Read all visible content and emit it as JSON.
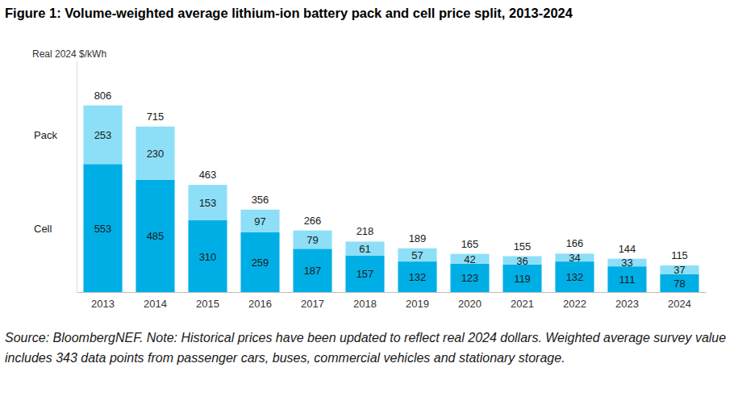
{
  "chart_data": {
    "type": "bar",
    "title": "Figure 1: Volume-weighted average lithium-ion battery pack and cell price split, 2013-2024",
    "y_label": "Real 2024 $/kWh",
    "categories": [
      "2013",
      "2014",
      "2015",
      "2016",
      "2017",
      "2018",
      "2019",
      "2020",
      "2021",
      "2022",
      "2023",
      "2024"
    ],
    "series": [
      {
        "name": "Cell",
        "color": "#00aee6",
        "values": [
          553,
          485,
          310,
          259,
          187,
          157,
          132,
          123,
          119,
          132,
          111,
          78
        ]
      },
      {
        "name": "Pack",
        "color": "#8ddff7",
        "values": [
          253,
          230,
          153,
          97,
          79,
          61,
          57,
          42,
          36,
          34,
          33,
          37
        ]
      }
    ],
    "totals": [
      806,
      715,
      463,
      356,
      266,
      218,
      189,
      165,
      155,
      166,
      144,
      115
    ],
    "ylim": [
      0,
      1000
    ],
    "yticks": [],
    "stacked": true,
    "data_labels": true,
    "tick_labels": "x",
    "grid": false,
    "note": "Source: BloombergNEF. Note: Historical prices have been updated to reflect real 2024 dollars. Weighted average survey value includes 343 data points from passenger cars, buses, commercial vehicles and stationary storage."
  }
}
